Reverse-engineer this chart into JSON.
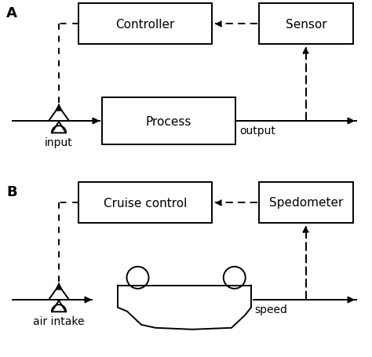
{
  "bg_color": "#ffffff",
  "line_color": "#000000",
  "text_color": "#000000",
  "label_A": "A",
  "label_B": "B",
  "controller_label": "Controller",
  "sensor_label": "Sensor",
  "process_label": "Process",
  "output_label": "output",
  "input_label": "input",
  "cruise_label": "Cruise control",
  "speedo_label": "Spedometer",
  "speed_label": "speed",
  "air_label": "air intake",
  "lw": 1.4,
  "fs": 11
}
